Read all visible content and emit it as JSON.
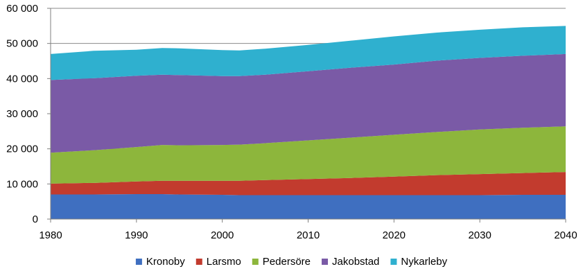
{
  "chart_data": {
    "type": "area",
    "stacked": true,
    "title": "",
    "xlabel": "",
    "ylabel": "",
    "x": [
      1980,
      1985,
      1990,
      1993,
      1995,
      2000,
      2002,
      2005,
      2010,
      2015,
      2020,
      2025,
      2030,
      2035,
      2040
    ],
    "xlim": [
      1980,
      2040
    ],
    "ylim": [
      0,
      60000
    ],
    "x_ticks": [
      "1980",
      "1990",
      "2000",
      "2010",
      "2020",
      "2030",
      "2040"
    ],
    "y_ticks": [
      "0",
      "10 000",
      "20 000",
      "30 000",
      "40 000",
      "50 000",
      "60 000"
    ],
    "grid": "horizontal",
    "legend_position": "bottom",
    "series": [
      {
        "name": "Kronoby",
        "color": "#3f6fc0",
        "values": [
          7000,
          7000,
          7100,
          7100,
          7000,
          6900,
          6800,
          6800,
          6800,
          6800,
          6800,
          6800,
          6800,
          6900,
          6900
        ]
      },
      {
        "name": "Larsmo",
        "color": "#c23b2e",
        "values": [
          3100,
          3300,
          3600,
          3800,
          3900,
          4000,
          4100,
          4300,
          4600,
          4900,
          5300,
          5700,
          6000,
          6200,
          6500
        ]
      },
      {
        "name": "Pedersöre",
        "color": "#8db63c",
        "values": [
          8800,
          9300,
          9800,
          10200,
          10100,
          10200,
          10300,
          10500,
          11000,
          11500,
          11900,
          12300,
          12700,
          12900,
          13000
        ]
      },
      {
        "name": "Jakobstad",
        "color": "#7a5aa6",
        "values": [
          20700,
          20500,
          20300,
          20000,
          20000,
          19600,
          19500,
          19500,
          19700,
          19900,
          20000,
          20300,
          20400,
          20500,
          20600
        ]
      },
      {
        "name": "Nykarleby",
        "color": "#2fb0cf",
        "values": [
          7400,
          7800,
          7400,
          7600,
          7600,
          7400,
          7300,
          7400,
          7500,
          7700,
          8000,
          8000,
          8000,
          8100,
          8000
        ]
      }
    ]
  }
}
